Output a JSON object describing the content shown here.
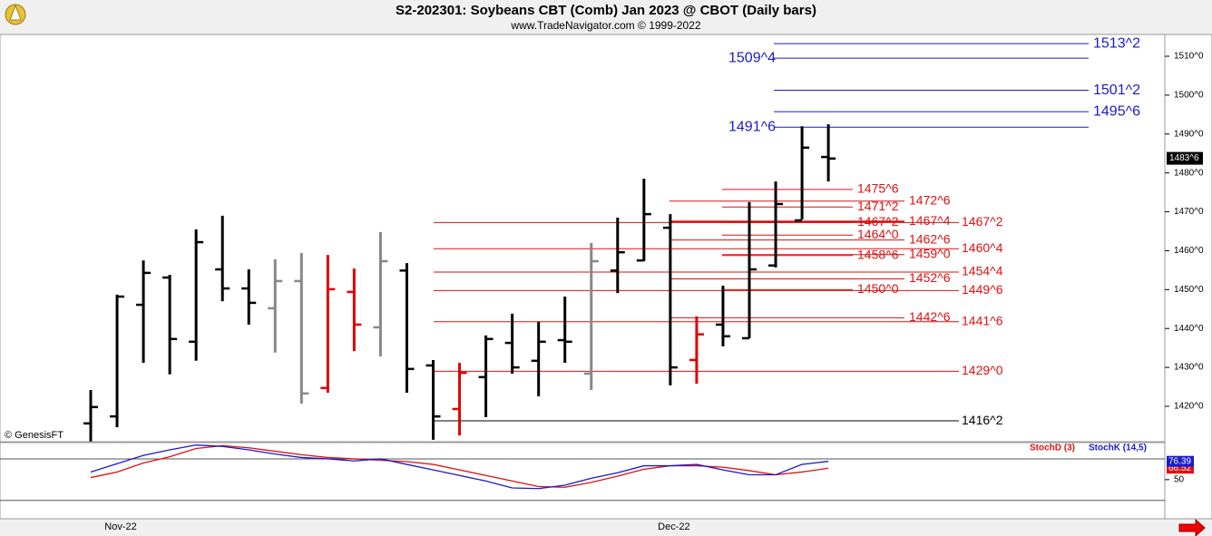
{
  "chart_data": {
    "type": "ohlc",
    "title": "S2-202301:  Soybeans CBT (Comb) Jan 2023 @ CBOT  (Daily bars)",
    "subtitle": "www.TradeNavigator.com © 1999-2022",
    "source": "© GenesisFT",
    "categories": [
      null,
      "Nov-22",
      null,
      null,
      null,
      null,
      null,
      null,
      null,
      null,
      null,
      null,
      null,
      null,
      null,
      null,
      null,
      null,
      null,
      null,
      null,
      null,
      "Dec-22",
      null,
      null,
      null,
      null,
      null,
      null
    ],
    "open": [
      1415.6,
      1417.4,
      1446.1,
      1453.1,
      1436.6,
      1455.2,
      1450.3,
      1445.2,
      1452.2,
      1424.7,
      1449.4,
      1440.3,
      1454.9,
      1430.5,
      1419.3,
      1427.5,
      1436.3,
      1431.7,
      1437.0,
      1428.4,
      1454.9,
      1457.5,
      1465.9,
      1431.9,
      1441.0,
      1437.5,
      1456.2,
      1467.8,
      1484.1
    ],
    "high": [
      1424.2,
      1448.7,
      1457.5,
      1453.8,
      1465.5,
      1469.0,
      1455.2,
      1457.8,
      1459.4,
      1458.9,
      1455.4,
      1464.8,
      1456.8,
      1431.9,
      1431.2,
      1438.2,
      1443.8,
      1441.7,
      1448.2,
      1462.0,
      1468.5,
      1478.5,
      1469.4,
      1443.1,
      1451.0,
      1472.5,
      1477.8,
      1492.0,
      1492.5
    ],
    "low": [
      1411.0,
      1414.6,
      1431.2,
      1428.2,
      1431.7,
      1447.0,
      1441.0,
      1433.8,
      1420.7,
      1423.5,
      1434.2,
      1432.8,
      1423.5,
      1411.4,
      1412.5,
      1417.2,
      1428.4,
      1422.6,
      1431.2,
      1424.2,
      1449.1,
      1457.3,
      1425.4,
      1425.8,
      1435.4,
      1437.5,
      1455.7,
      1468.0,
      1477.8
    ],
    "close": [
      1419.8,
      1448.2,
      1454.3,
      1437.3,
      1462.2,
      1450.3,
      1446.6,
      1452.2,
      1423.3,
      1450.1,
      1441.0,
      1457.3,
      1429.6,
      1417.4,
      1428.6,
      1437.3,
      1430.0,
      1436.6,
      1436.6,
      1457.3,
      1459.6,
      1469.4,
      1430.0,
      1438.5,
      1438.0,
      1455.2,
      1472.0,
      1486.5,
      1483.7
    ],
    "colors": [
      "#000000",
      "#000000",
      "#000000",
      "#000000",
      "#000000",
      "#000000",
      "#000000",
      "#888888",
      "#888888",
      "#e00000",
      "#e00000",
      "#888888",
      "#000000",
      "#000000",
      "#e00000",
      "#000000",
      "#000000",
      "#000000",
      "#000000",
      "#888888",
      "#000000",
      "#000000",
      "#000000",
      "#e00000",
      "#000000",
      "#000000",
      "#000000",
      "#000000",
      "#000000"
    ],
    "ylim": [
      1410.9,
      1515.6
    ],
    "yticks": [
      {
        "value": 1420,
        "label": "1420^0"
      },
      {
        "value": 1430,
        "label": "1430^0"
      },
      {
        "value": 1440,
        "label": "1440^0"
      },
      {
        "value": 1450,
        "label": "1450^0"
      },
      {
        "value": 1460,
        "label": "1460^0"
      },
      {
        "value": 1470,
        "label": "1470^0"
      },
      {
        "value": 1480,
        "label": "1480^0"
      },
      {
        "value": 1490,
        "label": "1490^0"
      },
      {
        "value": 1500,
        "label": "1500^0"
      },
      {
        "value": 1510,
        "label": "1510^0"
      }
    ],
    "last_price": {
      "value": 1483.75,
      "label": "1483^6"
    },
    "levels": [
      {
        "value": 1513.25,
        "label": "1513^2",
        "color": "#1a1acc"
      },
      {
        "value": 1509.5,
        "label": "1509^4",
        "color": "#1a1acc"
      },
      {
        "value": 1501.25,
        "label": "1501^2",
        "color": "#1a1acc"
      },
      {
        "value": 1495.75,
        "label": "1495^6",
        "color": "#1a1acc"
      },
      {
        "value": 1491.75,
        "label": "1491^6",
        "color": "#1a1acc"
      },
      {
        "value": 1475.75,
        "label": "1475^6",
        "color": "#dd1111"
      },
      {
        "value": 1472.75,
        "label": "1472^6",
        "color": "#dd1111"
      },
      {
        "value": 1471.25,
        "label": "1471^2",
        "color": "#dd1111"
      },
      {
        "value": 1467.5,
        "label": "1467^4",
        "color": "#dd1111"
      },
      {
        "value": 1467.25,
        "label": "1467^2",
        "color": "#dd1111"
      },
      {
        "value": 1467.25,
        "label": "1467^2",
        "color": "#dd1111"
      },
      {
        "value": 1464,
        "label": "1464^0",
        "color": "#dd1111"
      },
      {
        "value": 1462.75,
        "label": "1462^6",
        "color": "#dd1111"
      },
      {
        "value": 1460.5,
        "label": "1460^4",
        "color": "#dd1111"
      },
      {
        "value": 1459,
        "label": "1459^0",
        "color": "#dd1111"
      },
      {
        "value": 1458.75,
        "label": "1458^6",
        "color": "#dd1111"
      },
      {
        "value": 1454.5,
        "label": "1454^4",
        "color": "#dd1111"
      },
      {
        "value": 1452.75,
        "label": "1452^6",
        "color": "#dd1111"
      },
      {
        "value": 1450,
        "label": "1450^0",
        "color": "#dd1111"
      },
      {
        "value": 1449.75,
        "label": "1449^6",
        "color": "#dd1111"
      },
      {
        "value": 1442.75,
        "label": "1442^6",
        "color": "#dd1111"
      },
      {
        "value": 1441.75,
        "label": "1441^6",
        "color": "#dd1111"
      },
      {
        "value": 1429,
        "label": "1429^0",
        "color": "#dd1111"
      },
      {
        "value": 1416.25,
        "label": "1416^2",
        "color": "#000000"
      }
    ],
    "stochastic": {
      "ylim": [
        -6.5,
        103.5
      ],
      "yticks": [
        50
      ],
      "bands": [
        20,
        80
      ],
      "series": [
        {
          "name": "StochD (3)",
          "color": "#dd1111",
          "values": [
            53,
            61,
            74,
            83,
            95,
            99,
            96,
            91,
            86,
            82,
            80,
            78,
            76,
            72,
            64,
            56,
            48,
            40,
            39,
            46,
            55,
            65,
            70,
            70,
            68,
            63,
            57,
            61,
            66.52
          ]
        },
        {
          "name": "StochK (14,5)",
          "color": "#1a1acc",
          "values": [
            61,
            73,
            85,
            93,
            100,
            98,
            93,
            87,
            82,
            80,
            77,
            80,
            72,
            64,
            56,
            48,
            38,
            37,
            42,
            52,
            60,
            70,
            70,
            72,
            64,
            57,
            57,
            72,
            76.39
          ]
        }
      ]
    }
  }
}
